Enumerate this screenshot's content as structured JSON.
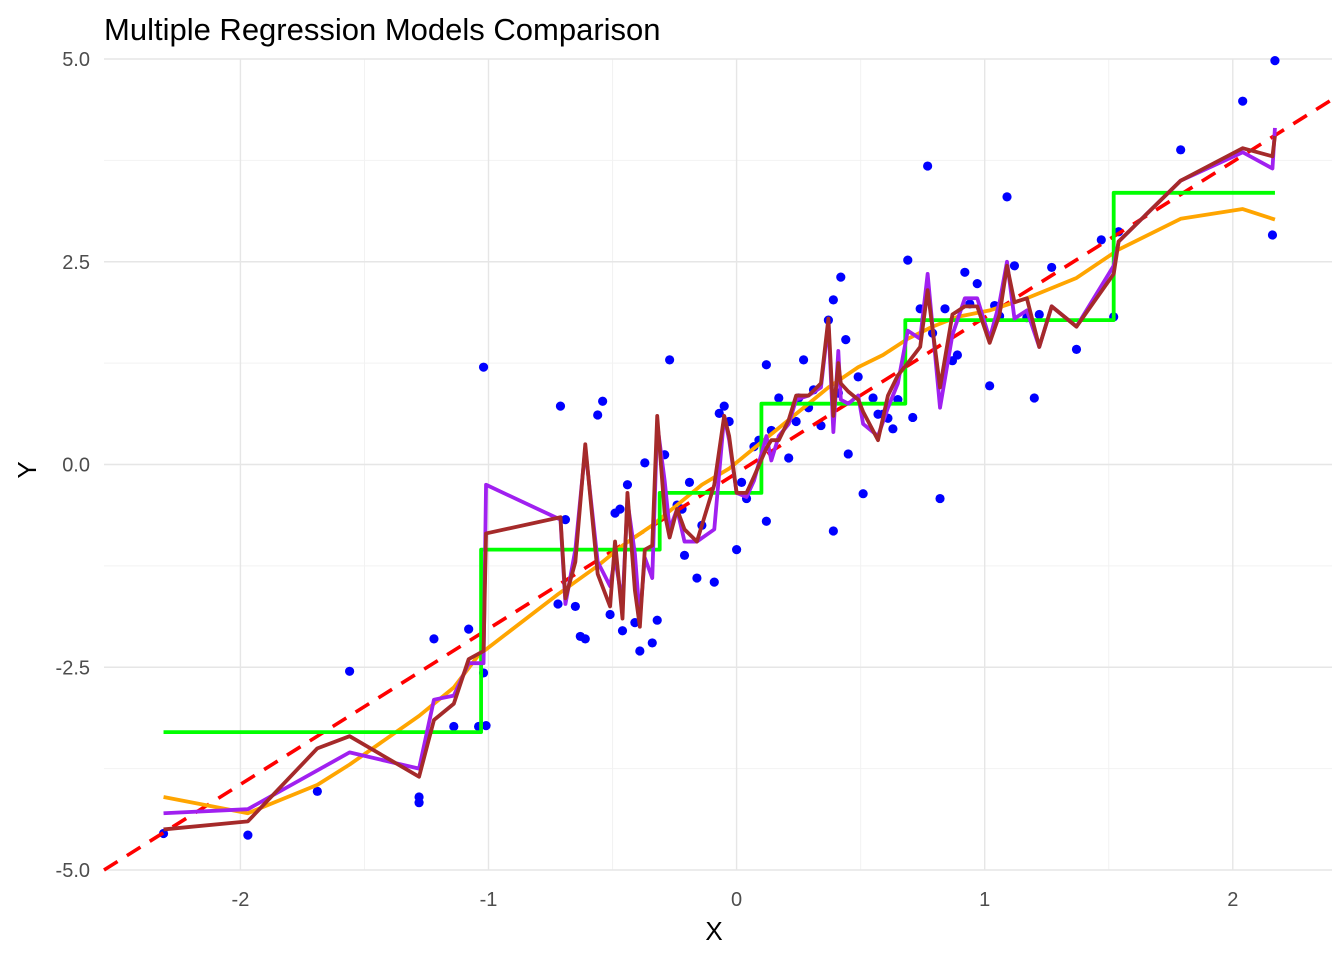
{
  "chart_data": {
    "type": "scatter",
    "title": "Multiple Regression Models Comparison",
    "xlabel": "X",
    "ylabel": "Y",
    "xlim": [
      -2.55,
      2.4
    ],
    "ylim": [
      -5.0,
      5.0
    ],
    "x_ticks": [
      -2,
      -1,
      0,
      1,
      2
    ],
    "x_tick_labels": [
      "-2",
      "-1",
      "0",
      "1",
      "2"
    ],
    "y_ticks": [
      -5,
      -2.5,
      0,
      2.5,
      5
    ],
    "y_tick_labels": [
      "-5.0",
      "-2.5",
      "0.0",
      "2.5",
      "5.0"
    ],
    "grid": true,
    "legend": "none",
    "points": {
      "color": "#0000ff",
      "x": [
        -2.31,
        -1.97,
        -1.69,
        -1.56,
        -1.28,
        -1.28,
        -1.22,
        -1.14,
        -1.08,
        -1.04,
        -1.02,
        -1.02,
        -1.01,
        -0.72,
        -0.71,
        -0.69,
        -0.65,
        -0.63,
        -0.61,
        -0.56,
        -0.54,
        -0.51,
        -0.49,
        -0.47,
        -0.46,
        -0.44,
        -0.41,
        -0.39,
        -0.37,
        -0.34,
        -0.32,
        -0.29,
        -0.27,
        -0.24,
        -0.22,
        -0.21,
        -0.19,
        -0.16,
        -0.14,
        -0.09,
        -0.07,
        -0.05,
        -0.03,
        0.0,
        0.02,
        0.04,
        0.07,
        0.09,
        0.12,
        0.12,
        0.14,
        0.17,
        0.21,
        0.24,
        0.25,
        0.27,
        0.29,
        0.31,
        0.34,
        0.37,
        0.39,
        0.39,
        0.41,
        0.42,
        0.44,
        0.45,
        0.49,
        0.51,
        0.55,
        0.57,
        0.59,
        0.61,
        0.63,
        0.65,
        0.69,
        0.71,
        0.74,
        0.77,
        0.79,
        0.82,
        0.84,
        0.87,
        0.89,
        0.92,
        0.94,
        0.97,
        1.02,
        1.04,
        1.06,
        1.09,
        1.12,
        1.17,
        1.2,
        1.22,
        1.27,
        1.37,
        1.47,
        1.52,
        1.54,
        1.79,
        2.04,
        2.16,
        2.17
      ],
      "y": [
        -4.55,
        -4.57,
        -4.03,
        -2.55,
        -4.17,
        -4.1,
        -2.15,
        -3.23,
        -2.03,
        -3.23,
        -2.57,
        1.2,
        -3.22,
        -1.72,
        0.72,
        -0.68,
        -1.75,
        -2.12,
        -2.15,
        0.61,
        0.78,
        -1.85,
        -0.6,
        -0.55,
        -2.05,
        -0.25,
        -1.95,
        -2.3,
        0.02,
        -2.2,
        -1.92,
        0.12,
        1.29,
        -0.5,
        -0.55,
        -1.12,
        -0.22,
        -1.4,
        -0.75,
        -1.45,
        0.63,
        0.72,
        0.53,
        -1.05,
        -0.22,
        -0.42,
        0.22,
        0.3,
        -0.7,
        1.23,
        0.42,
        0.82,
        0.08,
        0.53,
        0.82,
        1.29,
        0.7,
        0.92,
        0.48,
        1.78,
        2.03,
        -0.82,
        0.88,
        2.31,
        1.54,
        0.13,
        1.08,
        -0.36,
        0.82,
        0.62,
        0.62,
        0.57,
        0.44,
        0.8,
        2.52,
        0.58,
        1.92,
        3.68,
        1.62,
        -0.42,
        1.92,
        1.28,
        1.35,
        2.37,
        1.98,
        2.23,
        0.97,
        1.96,
        1.83,
        3.3,
        2.45,
        1.81,
        0.82,
        1.85,
        2.43,
        1.42,
        2.77,
        1.82,
        2.87,
        3.88,
        4.48,
        2.83,
        4.98
      ]
    },
    "series": [
      {
        "color": "#ff0000",
        "dashed": true,
        "x": [
          -2.55,
          2.4
        ],
        "y": [
          -5.0,
          4.5
        ]
      },
      {
        "color": "#ffa500",
        "x": [
          -2.31,
          -1.97,
          -1.69,
          -1.56,
          -1.28,
          -1.14,
          -1.04,
          -0.72,
          -0.56,
          -0.46,
          -0.34,
          -0.24,
          -0.14,
          -0.03,
          0.07,
          0.17,
          0.27,
          0.37,
          0.49,
          0.59,
          0.69,
          0.79,
          0.89,
          1.02,
          1.17,
          1.37,
          1.54,
          1.79,
          2.04,
          2.17
        ],
        "y": [
          -4.1,
          -4.3,
          -3.95,
          -3.7,
          -3.1,
          -2.75,
          -2.35,
          -1.6,
          -1.25,
          -1.0,
          -0.75,
          -0.5,
          -0.25,
          -0.05,
          0.2,
          0.45,
          0.7,
          0.95,
          1.2,
          1.35,
          1.55,
          1.7,
          1.82,
          1.9,
          2.05,
          2.3,
          2.65,
          3.03,
          3.15,
          3.02
        ]
      },
      {
        "color": "#00ff00",
        "step": true,
        "x": [
          -2.31,
          -1.03,
          -1.03,
          -0.31,
          -0.31,
          0.1,
          0.1,
          0.68,
          0.68,
          1.37,
          1.37,
          1.52,
          1.52,
          2.17
        ],
        "y": [
          -3.3,
          -3.3,
          -1.05,
          -1.05,
          -0.35,
          -0.35,
          0.75,
          0.75,
          1.78,
          1.78,
          1.78,
          1.78,
          3.35,
          3.35
        ]
      },
      {
        "color": "#a020f0",
        "x": [
          -2.31,
          -1.97,
          -1.56,
          -1.28,
          -1.22,
          -1.14,
          -1.08,
          -1.02,
          -1.01,
          -0.71,
          -0.69,
          -0.65,
          -0.61,
          -0.56,
          -0.51,
          -0.49,
          -0.46,
          -0.44,
          -0.41,
          -0.39,
          -0.37,
          -0.34,
          -0.32,
          -0.29,
          -0.27,
          -0.24,
          -0.21,
          -0.16,
          -0.09,
          -0.05,
          -0.03,
          0.0,
          0.04,
          0.07,
          0.12,
          0.14,
          0.17,
          0.21,
          0.24,
          0.29,
          0.34,
          0.37,
          0.39,
          0.41,
          0.42,
          0.45,
          0.49,
          0.51,
          0.57,
          0.61,
          0.65,
          0.69,
          0.74,
          0.77,
          0.82,
          0.87,
          0.92,
          0.97,
          1.02,
          1.06,
          1.09,
          1.12,
          1.17,
          1.22,
          1.27,
          1.37,
          1.52,
          1.54,
          1.79,
          2.04,
          2.16,
          2.17
        ],
        "y": [
          -4.3,
          -4.25,
          -3.55,
          -3.75,
          -2.9,
          -2.85,
          -2.45,
          -2.45,
          -0.25,
          -0.68,
          -1.72,
          -1.05,
          0.2,
          -1.2,
          -1.5,
          -1.15,
          -1.72,
          -0.45,
          -1.1,
          -1.9,
          -1.15,
          -1.4,
          0.5,
          -0.2,
          -0.8,
          -0.55,
          -0.95,
          -0.95,
          -0.8,
          0.6,
          0.3,
          -0.35,
          -0.4,
          -0.2,
          0.35,
          0.05,
          0.35,
          0.5,
          0.8,
          0.85,
          0.95,
          1.75,
          0.4,
          1.4,
          0.8,
          0.75,
          0.85,
          0.5,
          0.35,
          0.7,
          1.0,
          1.65,
          1.55,
          2.35,
          0.7,
          1.6,
          2.05,
          2.05,
          1.55,
          2.0,
          2.5,
          1.8,
          1.9,
          1.45,
          1.95,
          1.7,
          2.45,
          2.75,
          3.5,
          3.85,
          3.65,
          4.15
        ]
      },
      {
        "color": "#a52a2a",
        "x": [
          -2.31,
          -1.97,
          -1.69,
          -1.56,
          -1.28,
          -1.22,
          -1.14,
          -1.08,
          -1.02,
          -1.01,
          -0.71,
          -0.69,
          -0.65,
          -0.61,
          -0.56,
          -0.51,
          -0.49,
          -0.46,
          -0.44,
          -0.41,
          -0.39,
          -0.37,
          -0.34,
          -0.32,
          -0.29,
          -0.27,
          -0.24,
          -0.21,
          -0.16,
          -0.09,
          -0.05,
          -0.03,
          0.0,
          0.04,
          0.07,
          0.12,
          0.14,
          0.17,
          0.21,
          0.24,
          0.29,
          0.34,
          0.37,
          0.39,
          0.41,
          0.42,
          0.45,
          0.49,
          0.51,
          0.57,
          0.61,
          0.65,
          0.69,
          0.74,
          0.77,
          0.82,
          0.87,
          0.92,
          0.97,
          1.02,
          1.06,
          1.09,
          1.12,
          1.17,
          1.22,
          1.27,
          1.37,
          1.52,
          1.54,
          1.79,
          2.04,
          2.16,
          2.17
        ],
        "y": [
          -4.5,
          -4.4,
          -3.5,
          -3.35,
          -3.85,
          -3.15,
          -2.95,
          -2.4,
          -2.3,
          -0.85,
          -0.65,
          -1.65,
          -1.2,
          0.25,
          -1.35,
          -1.75,
          -0.95,
          -1.9,
          -0.35,
          -1.55,
          -2.0,
          -1.05,
          -1.0,
          0.6,
          -0.6,
          -0.9,
          -0.55,
          -0.8,
          -0.95,
          -0.25,
          0.6,
          0.35,
          -0.35,
          -0.35,
          -0.15,
          0.2,
          0.3,
          0.3,
          0.55,
          0.85,
          0.85,
          1.0,
          1.8,
          0.6,
          1.25,
          1.0,
          0.9,
          0.8,
          0.65,
          0.3,
          0.85,
          1.1,
          1.25,
          1.45,
          2.15,
          0.95,
          1.85,
          1.95,
          1.95,
          1.5,
          1.85,
          2.45,
          2.0,
          2.05,
          1.45,
          1.95,
          1.7,
          2.35,
          2.75,
          3.5,
          3.9,
          3.8,
          4.05
        ]
      }
    ]
  }
}
